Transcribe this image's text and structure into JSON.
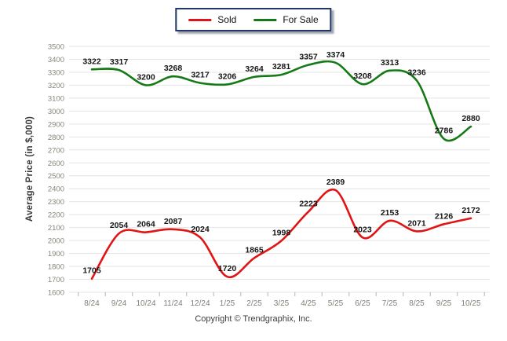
{
  "chart_data": {
    "type": "line",
    "title": "",
    "ylabel": "Average Price (in $,000)",
    "xlabel": "",
    "categories": [
      "8/24",
      "9/24",
      "10/24",
      "11/24",
      "12/24",
      "1/25",
      "2/25",
      "3/25",
      "4/25",
      "5/25",
      "6/25",
      "7/25",
      "8/25",
      "9/25",
      "10/25"
    ],
    "series": [
      {
        "name": "Sold",
        "color": "#e01414",
        "values": [
          1705,
          2054,
          2064,
          2087,
          2024,
          1720,
          1865,
          1998,
          2223,
          2389,
          2023,
          2153,
          2071,
          2126,
          2172
        ]
      },
      {
        "name": "For Sale",
        "color": "#157a15",
        "values": [
          3322,
          3317,
          3200,
          3268,
          3217,
          3206,
          3264,
          3281,
          3357,
          3374,
          3208,
          3313,
          3236,
          2786,
          2880
        ]
      }
    ],
    "ylim": [
      1600,
      3500
    ],
    "ytick_step": 100,
    "grid": true,
    "smooth": true,
    "data_labels": true,
    "legend_position": "top-center"
  },
  "legend": {
    "items": [
      {
        "label": "Sold"
      },
      {
        "label": "For Sale"
      }
    ]
  },
  "footer": {
    "copyright": "Copyright © Trendgraphix, Inc."
  }
}
